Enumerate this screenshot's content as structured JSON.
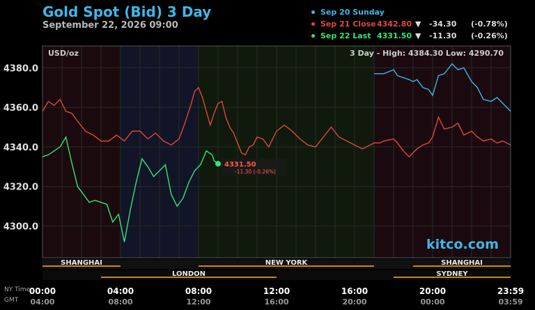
{
  "header": {
    "title": "Gold Spot (Bid) 3 Day",
    "subtitle": "September 22, 2026 09:00"
  },
  "legend": [
    {
      "label": "Sep 20 Sunday",
      "value": "",
      "arrow": "",
      "change": "",
      "pct": "",
      "color": "#3fb6e8"
    },
    {
      "label": "Sep 21 Close",
      "value": "4342.80",
      "arrow": "▼",
      "change": "-34.30",
      "pct": "(-0.78%)",
      "color": "#e0483a"
    },
    {
      "label": "Sep 22 Last",
      "value": "4331.50",
      "arrow": "▼",
      "change": "-11.30",
      "pct": "(-0.26%)",
      "color": "#2ee87a"
    }
  ],
  "chart_data": {
    "type": "line",
    "ylabel": "USD/oz",
    "ylim": [
      4284,
      4391
    ],
    "yticks": [
      "4300.0",
      "4320.0",
      "4340.0",
      "4360.0",
      "4380.0"
    ],
    "high_low": "3 Day - High: 4384.30  Low: 4290.70",
    "last_label": "4331.50",
    "last_change": "-11.30 (-0.26%)",
    "x_hours": [
      0,
      24
    ],
    "series": [
      {
        "name": "Sep 20 Sunday",
        "color": "#3fb6e8",
        "x": [
          17,
          17.5,
          18,
          18.2,
          18.5,
          18.8,
          19,
          19.2,
          19.5,
          19.8,
          20,
          20.3,
          20.6,
          21,
          21.3,
          21.6,
          22,
          22.3,
          22.6,
          23,
          23.3,
          23.6,
          24
        ],
        "values": [
          4377,
          4377,
          4379,
          4376,
          4375,
          4374,
          4373,
          4374,
          4370,
          4369,
          4366,
          4376,
          4377,
          4382,
          4379,
          4380,
          4373,
          4370,
          4364,
          4363,
          4365,
          4362,
          4358
        ]
      },
      {
        "name": "Sep 21 Close",
        "color": "#e0483a",
        "x": [
          0,
          0.3,
          0.6,
          0.9,
          1.2,
          1.5,
          1.8,
          2.2,
          2.6,
          3,
          3.4,
          3.8,
          4.2,
          4.6,
          5,
          5.4,
          5.8,
          6.2,
          6.6,
          7,
          7.3,
          7.6,
          7.8,
          8,
          8.2,
          8.4,
          8.6,
          8.8,
          9,
          9.2,
          9.4,
          9.6,
          9.8,
          10,
          10.2,
          10.4,
          10.6,
          10.8,
          11,
          11.3,
          11.6,
          12,
          12.4,
          12.8,
          13.2,
          13.6,
          14,
          14.4,
          14.8,
          15.2,
          15.6,
          16,
          16.4,
          16.8,
          17,
          17.3,
          17.5,
          18,
          18.2,
          18.5,
          18.8,
          19,
          19.2,
          19.5,
          19.8,
          20,
          20.3,
          20.6,
          21,
          21.3,
          21.6,
          22,
          22.3,
          22.6,
          23,
          23.3,
          23.6,
          24
        ],
        "values": [
          4358,
          4363,
          4361,
          4364,
          4358,
          4357,
          4353,
          4348,
          4346,
          4343,
          4343,
          4346,
          4343,
          4348,
          4348,
          4344,
          4347,
          4343,
          4341,
          4344,
          4352,
          4361,
          4368,
          4370,
          4365,
          4358,
          4351,
          4357,
          4362,
          4363,
          4355,
          4350,
          4347,
          4342,
          4337,
          4336,
          4340,
          4341,
          4345,
          4344,
          4340,
          4348,
          4351,
          4348,
          4344,
          4341,
          4340,
          4345,
          4350,
          4345,
          4343,
          4341,
          4339,
          4341,
          4342,
          4342,
          4343,
          4344,
          4342,
          4338,
          4335,
          4337,
          4339,
          4341,
          4342,
          4345,
          4355,
          4349,
          4350,
          4352,
          4346,
          4348,
          4345,
          4343,
          4344,
          4342,
          4343,
          4341
        ]
      },
      {
        "name": "Sep 22 Last",
        "color": "#2ee87a",
        "x": [
          0,
          0.3,
          0.6,
          0.9,
          1.2,
          1.5,
          1.8,
          2.1,
          2.4,
          2.7,
          3,
          3.3,
          3.6,
          3.9,
          4.2,
          4.5,
          4.8,
          5.1,
          5.4,
          5.7,
          6,
          6.3,
          6.6,
          6.9,
          7.2,
          7.5,
          7.8,
          8.1,
          8.4,
          8.7,
          8.8,
          9
        ],
        "values": [
          4335,
          4336,
          4338,
          4340,
          4345,
          4332,
          4320,
          4316,
          4312,
          4313,
          4312,
          4311,
          4302,
          4306,
          4292,
          4308,
          4322,
          4334,
          4330,
          4325,
          4328,
          4331,
          4316,
          4310,
          4314,
          4322,
          4328,
          4331,
          4338,
          4336,
          4333,
          4331.5
        ]
      }
    ]
  },
  "sessions_top": [
    {
      "label": "SHANGHAI",
      "from": 0,
      "to": 4
    },
    {
      "label": "NEW YORK",
      "from": 8,
      "to": 17
    },
    {
      "label": "SHANGHAI",
      "from": 19,
      "to": 24
    }
  ],
  "sessions_bottom": [
    {
      "label": "LONDON",
      "from": 3,
      "to": 12
    },
    {
      "label": "SYDNEY",
      "from": 18,
      "to": 24
    }
  ],
  "xaxis": {
    "row1_label": "NY Time",
    "row2_label": "GMT",
    "ticks_ny": [
      "00:00",
      "04:00",
      "08:00",
      "12:00",
      "16:00",
      "20:00",
      "23:59"
    ],
    "ticks_gmt": [
      "04:00",
      "08:00",
      "12:00",
      "16:00",
      "20:00",
      "00:00",
      "03:59"
    ]
  },
  "watermark": "kitco.com"
}
